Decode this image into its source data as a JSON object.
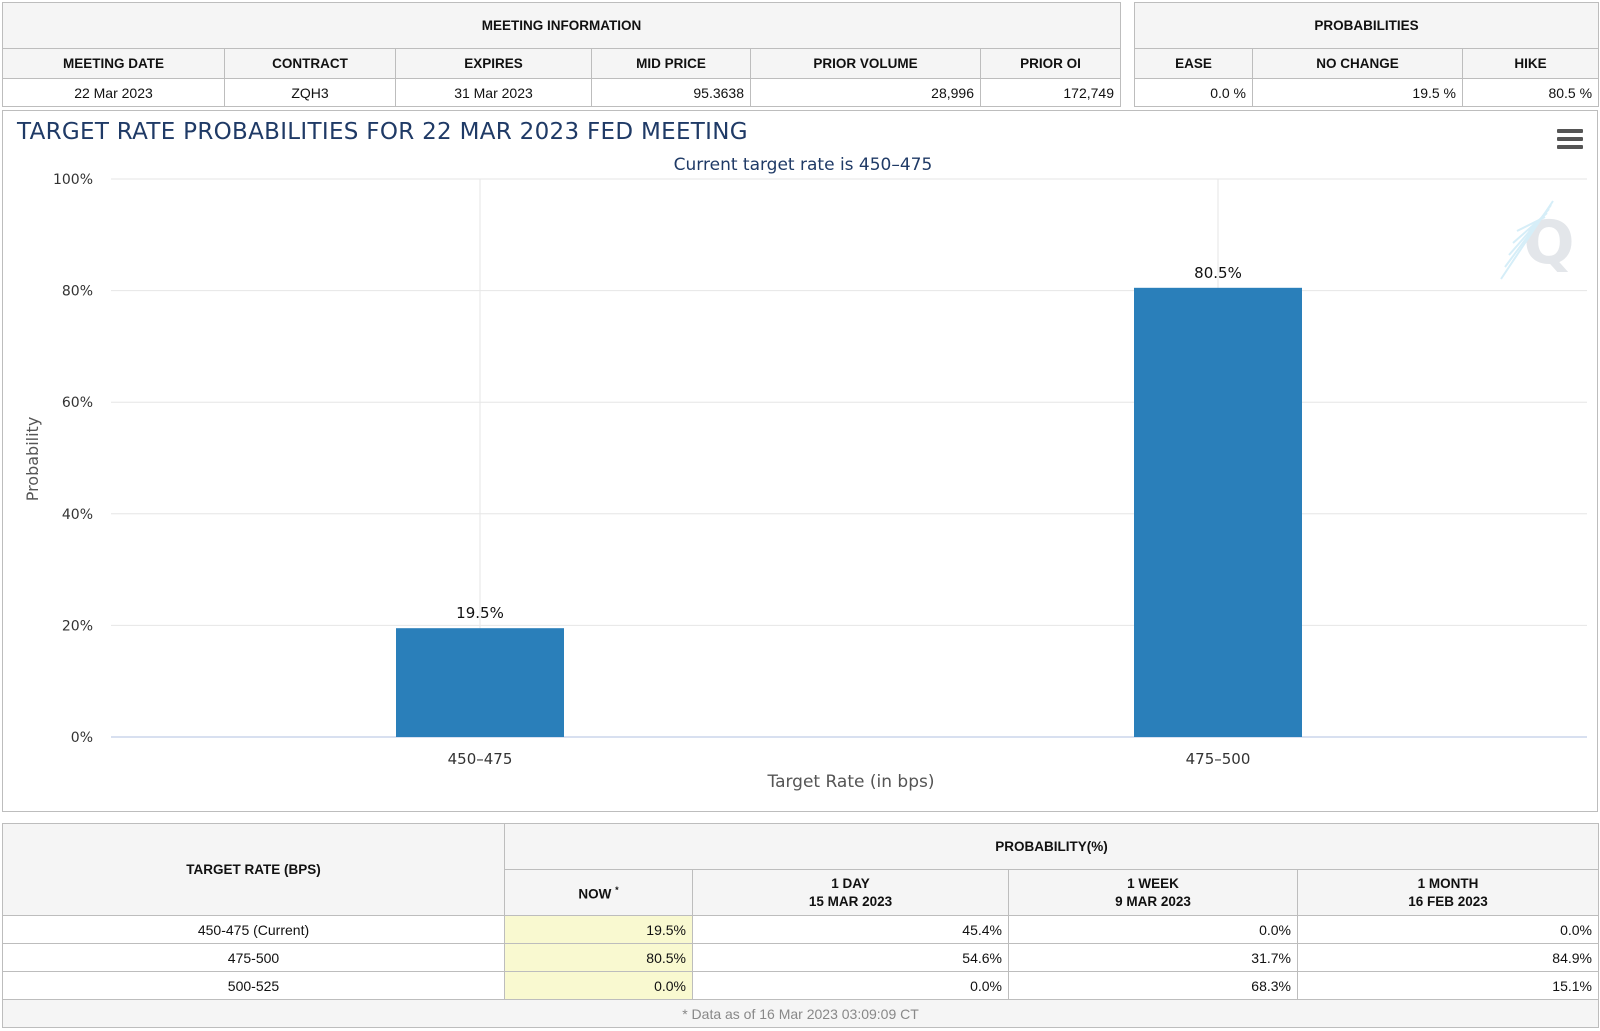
{
  "meeting_info": {
    "title": "MEETING INFORMATION",
    "columns": [
      "MEETING DATE",
      "CONTRACT",
      "EXPIRES",
      "MID PRICE",
      "PRIOR VOLUME",
      "PRIOR OI"
    ],
    "values": [
      "22 Mar 2023",
      "ZQH3",
      "31 Mar 2023",
      "95.3638",
      "28,996",
      "172,749"
    ]
  },
  "probabilities": {
    "title": "PROBABILITIES",
    "columns": [
      "EASE",
      "NO CHANGE",
      "HIKE"
    ],
    "values": [
      "0.0 %",
      "19.5 %",
      "80.5 %"
    ]
  },
  "chart": {
    "title": "TARGET RATE PROBABILITIES FOR 22 MAR 2023 FED MEETING",
    "subtitle": "Current target rate is 450–475",
    "watermark": "Q",
    "menu_icon": "hamburger-menu-icon"
  },
  "chart_data": {
    "type": "bar",
    "title": "TARGET RATE PROBABILITIES FOR 22 MAR 2023 FED MEETING",
    "subtitle": "Current target rate is 450–475",
    "categories": [
      "450–475",
      "475–500"
    ],
    "values": [
      19.5,
      80.5
    ],
    "data_labels": [
      "19.5%",
      "80.5%"
    ],
    "xlabel": "Target Rate (in bps)",
    "ylabel": "Probability",
    "ylim": [
      0,
      100
    ],
    "yticks": [
      "0%",
      "20%",
      "40%",
      "60%",
      "80%",
      "100%"
    ],
    "ytick_values": [
      0,
      20,
      40,
      60,
      80,
      100
    ],
    "grid": true,
    "bar_color": "#2a7fba"
  },
  "rates_table": {
    "rate_header": "TARGET RATE (BPS)",
    "prob_header": "PROBABILITY(%)",
    "columns": [
      {
        "line1": "NOW",
        "line2": "",
        "sup": "*"
      },
      {
        "line1": "1 DAY",
        "line2": "15 MAR 2023",
        "sup": ""
      },
      {
        "line1": "1 WEEK",
        "line2": "9 MAR 2023",
        "sup": ""
      },
      {
        "line1": "1 MONTH",
        "line2": "16 FEB 2023",
        "sup": ""
      }
    ],
    "rows": [
      {
        "rate": "450-475 (Current)",
        "values": [
          "19.5%",
          "45.4%",
          "0.0%",
          "0.0%"
        ]
      },
      {
        "rate": "475-500",
        "values": [
          "80.5%",
          "54.6%",
          "31.7%",
          "84.9%"
        ]
      },
      {
        "rate": "500-525",
        "values": [
          "0.0%",
          "0.0%",
          "68.3%",
          "15.1%"
        ]
      }
    ],
    "footnote": "* Data as of 16 Mar 2023 03:09:09 CT"
  }
}
